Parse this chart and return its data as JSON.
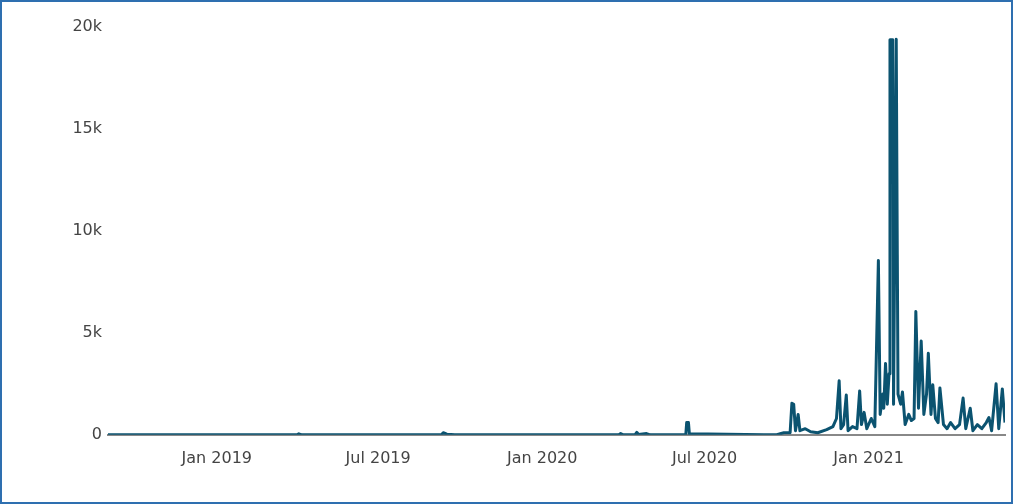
{
  "chart_data": {
    "type": "line",
    "color": "#0b5370",
    "x": [
      "2018-09-01",
      "2019-04-01",
      "2019-04-03",
      "2019-04-06",
      "2019-09-10",
      "2019-09-12",
      "2019-09-16",
      "2019-09-25",
      "2020-03-27",
      "2020-03-29",
      "2020-04-01",
      "2020-04-14",
      "2020-04-16",
      "2020-04-18",
      "2020-04-27",
      "2020-05-01",
      "2020-06-10",
      "2020-06-11",
      "2020-06-13",
      "2020-06-14",
      "2020-09-20",
      "2020-09-28",
      "2020-10-05",
      "2020-10-07",
      "2020-10-09",
      "2020-10-11",
      "2020-10-14",
      "2020-10-16",
      "2020-10-22",
      "2020-10-28",
      "2020-11-05",
      "2020-11-15",
      "2020-11-22",
      "2020-11-26",
      "2020-11-29",
      "2020-12-01",
      "2020-12-04",
      "2020-12-07",
      "2020-12-09",
      "2020-12-14",
      "2020-12-19",
      "2020-12-22",
      "2020-12-24",
      "2020-12-27",
      "2020-12-30",
      "2021-01-04",
      "2021-01-08",
      "2021-01-12",
      "2021-01-14",
      "2021-01-17",
      "2021-01-18",
      "2021-01-20",
      "2021-01-22",
      "2021-01-24",
      "2021-01-25",
      "2021-01-28",
      "2021-01-29",
      "2021-02-01",
      "2021-02-03",
      "2021-02-06",
      "2021-02-08",
      "2021-02-11",
      "2021-02-15",
      "2021-02-18",
      "2021-02-21",
      "2021-02-23",
      "2021-02-26",
      "2021-03-01",
      "2021-03-04",
      "2021-03-07",
      "2021-03-09",
      "2021-03-12",
      "2021-03-14",
      "2021-03-17",
      "2021-03-20",
      "2021-03-22",
      "2021-03-26",
      "2021-03-30",
      "2021-04-03",
      "2021-04-08",
      "2021-04-13",
      "2021-04-17",
      "2021-04-20",
      "2021-04-25",
      "2021-04-28",
      "2021-05-03",
      "2021-05-08",
      "2021-05-13",
      "2021-05-16",
      "2021-05-19",
      "2021-05-24",
      "2021-05-27",
      "2021-05-31",
      "2021-06-03"
    ],
    "values": [
      0,
      0,
      50,
      0,
      0,
      100,
      30,
      0,
      0,
      60,
      0,
      0,
      120,
      20,
      60,
      0,
      0,
      600,
      600,
      50,
      0,
      100,
      100,
      1550,
      1500,
      200,
      1000,
      200,
      300,
      150,
      100,
      250,
      400,
      800,
      2650,
      300,
      500,
      1950,
      200,
      400,
      300,
      2150,
      500,
      1100,
      300,
      800,
      400,
      8550,
      1000,
      2000,
      1300,
      3500,
      1500,
      3000,
      19380,
      19380,
      1500,
      19400,
      2000,
      1500,
      2100,
      500,
      1000,
      700,
      800,
      6050,
      1300,
      4600,
      1000,
      2000,
      4000,
      1000,
      2450,
      800,
      600,
      2300,
      500,
      300,
      600,
      300,
      500,
      1800,
      300,
      1300,
      200,
      500,
      300,
      600,
      850,
      200,
      2500,
      300,
      2250,
      600
    ],
    "xlim": [
      "2018-09-01",
      "2021-06-03"
    ],
    "xticks": [
      {
        "value": "2019-01-01",
        "label": "Jan 2019"
      },
      {
        "value": "2019-07-01",
        "label": "Jul 2019"
      },
      {
        "value": "2020-01-01",
        "label": "Jan 2020"
      },
      {
        "value": "2020-07-01",
        "label": "Jul 2020"
      },
      {
        "value": "2021-01-01",
        "label": "Jan 2021"
      }
    ],
    "ylim": [
      0,
      20000
    ],
    "yticks": [
      {
        "value": 0,
        "label": "0"
      },
      {
        "value": 5000,
        "label": "5k"
      },
      {
        "value": 10000,
        "label": "10k"
      },
      {
        "value": 15000,
        "label": "15k"
      },
      {
        "value": 20000,
        "label": "20k"
      }
    ],
    "grid": false,
    "legend": false
  }
}
